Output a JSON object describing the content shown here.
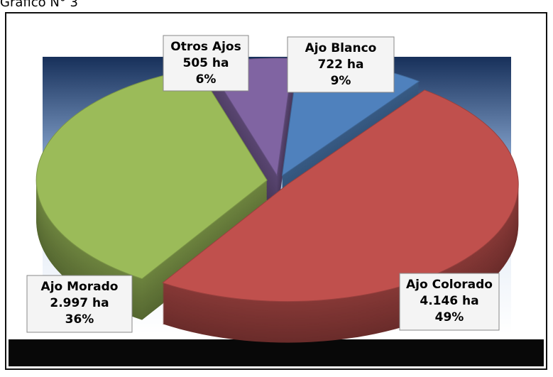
{
  "chart_data": {
    "type": "pie3d",
    "title": "Gráfico N° 3",
    "categories": [
      "Ajo Blanco",
      "Ajo Colorado",
      "Ajo Morado",
      "Otros Ajos"
    ],
    "values": [
      9,
      49,
      36,
      6
    ],
    "value_labels": [
      "9%",
      "49%",
      "36%",
      "6%"
    ],
    "areas": [
      722,
      4146,
      2997,
      505
    ],
    "area_labels": [
      "722 ha",
      "4.146 ha",
      "2.997 ha",
      "505 ha"
    ],
    "colors": [
      "#4f81bd",
      "#c0504d",
      "#9bbb59",
      "#8064a2"
    ]
  }
}
